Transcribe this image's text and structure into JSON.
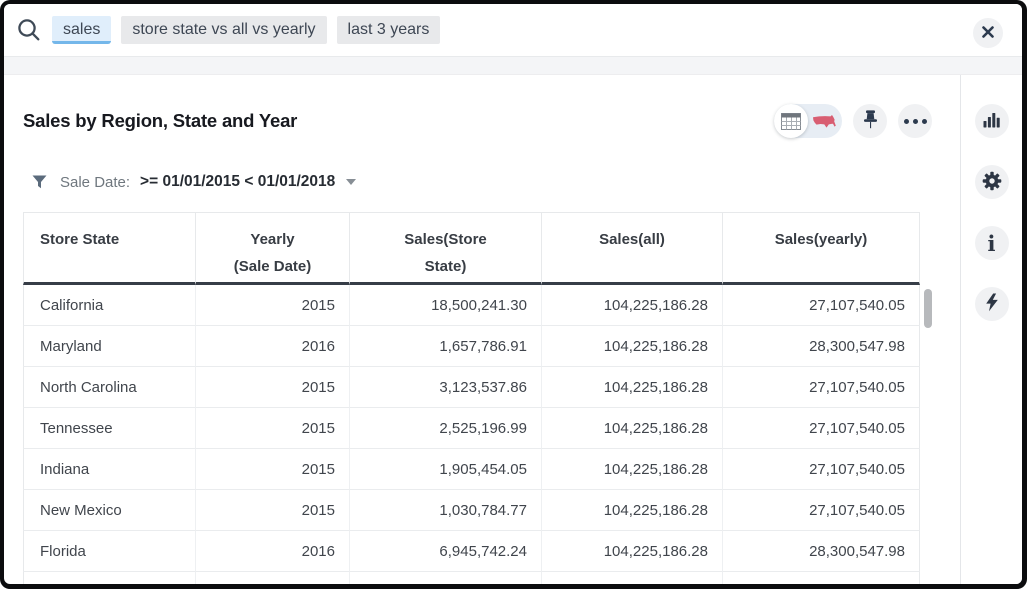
{
  "search": {
    "tokens": [
      {
        "label": "sales",
        "active": true
      },
      {
        "label": "store state vs all vs yearly",
        "active": false
      },
      {
        "label": "last 3 years",
        "active": false
      }
    ]
  },
  "header": {
    "title": "Sales by Region, State and Year"
  },
  "filter": {
    "label": "Sale Date:",
    "condition": ">= 01/01/2015 < 01/01/2018"
  },
  "table": {
    "columns": [
      {
        "lines": [
          "Store State"
        ]
      },
      {
        "lines": [
          "Yearly",
          "(Sale Date)"
        ]
      },
      {
        "lines": [
          "Sales(Store State)"
        ]
      },
      {
        "lines": [
          "Sales(all)"
        ]
      },
      {
        "lines": [
          "Sales(yearly)"
        ]
      }
    ],
    "rows": [
      [
        "California",
        "2015",
        "18,500,241.30",
        "104,225,186.28",
        "27,107,540.05"
      ],
      [
        "Maryland",
        "2016",
        "1,657,786.91",
        "104,225,186.28",
        "28,300,547.98"
      ],
      [
        "North Carolina",
        "2015",
        "3,123,537.86",
        "104,225,186.28",
        "27,107,540.05"
      ],
      [
        "Tennessee",
        "2015",
        "2,525,196.99",
        "104,225,186.28",
        "27,107,540.05"
      ],
      [
        "Indiana",
        "2015",
        "1,905,454.05",
        "104,225,186.28",
        "27,107,540.05"
      ],
      [
        "New Mexico",
        "2015",
        "1,030,784.77",
        "104,225,186.28",
        "27,107,540.05"
      ],
      [
        "Florida",
        "2016",
        "6,945,742.24",
        "104,225,186.28",
        "28,300,547.98"
      ]
    ]
  },
  "icons": {
    "search": "magnifier",
    "close": "×",
    "filter": "funnel",
    "caret": "▾",
    "view_toggle": [
      "table-grid",
      "usa-map"
    ],
    "pin": "pushpin",
    "more": "•••",
    "sidebar": [
      "bar-chart",
      "gear",
      "info",
      "lightning-bolt"
    ],
    "info_glyph": "i"
  },
  "colors": {
    "accent_token_bg": "#e0eefb",
    "accent_token_underline": "#74b7ea",
    "token_bg": "#e8e9eb",
    "icon_navy": "#2c3a4e",
    "map_red": "#d64a60",
    "header_rule": "#363d47",
    "strip_bg": "#f4f5f7"
  }
}
